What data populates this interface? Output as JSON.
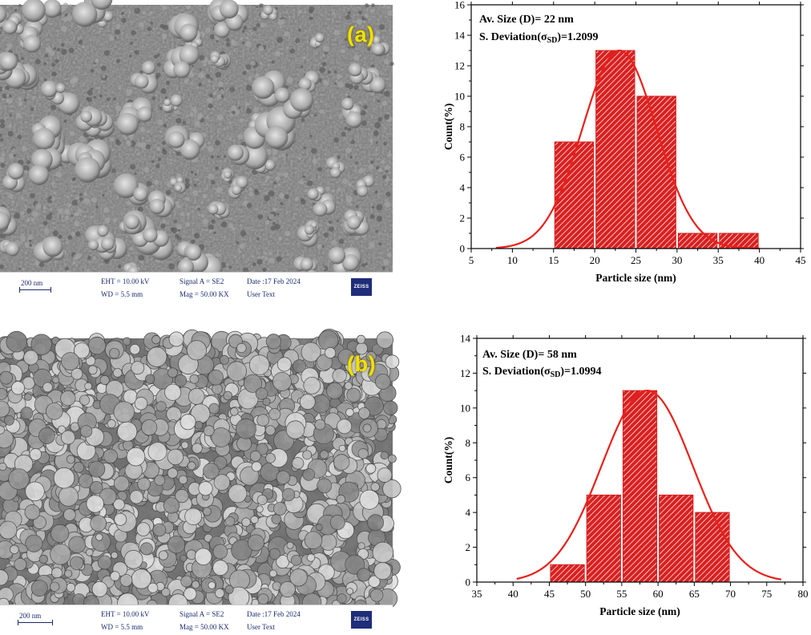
{
  "panels": [
    {
      "label": "(a)",
      "sem_info": {
        "scale_label": "200 nm",
        "eht": "EHT = 10.00 kV",
        "wd": "WD = 5.5 mm",
        "signal": "Signal A = SE2",
        "mag": "Mag = 50.00 KX",
        "date": "Date :17 Feb 2024",
        "user": "User Text",
        "logo": "ZEISS"
      },
      "stats": {
        "size_text": "Av. Size (D)= 22 nm",
        "dev_prefix": "S. Deviation(",
        "sigma": "σ",
        "sigma_sub": "SD",
        "dev_value": ")=1.2099"
      }
    },
    {
      "label": "(b)",
      "sem_info": {
        "scale_label": "200 nm",
        "eht": "EHT = 10.00 kV",
        "wd": "WD = 5.5 mm",
        "signal": "Signal A = SE2",
        "mag": "Mag = 50.00 KX",
        "date": "Date :17 Feb 2024",
        "user": "User Text",
        "logo": "ZEISS"
      },
      "stats": {
        "size_text": "Av. Size (D)= 58 nm",
        "dev_prefix": "S. Deviation(",
        "sigma": "σ",
        "sigma_sub": "SD",
        "dev_value": ")=1.0994"
      }
    }
  ],
  "colors": {
    "bar": "#d92020",
    "curve": "#e8201a",
    "label_yellow": "#f2e000"
  },
  "chart_data": [
    {
      "type": "bar",
      "bin_edges": [
        15,
        20,
        25,
        30,
        35,
        40
      ],
      "values": [
        7,
        13,
        10,
        1,
        1
      ],
      "fit_curve": {
        "mean": 23,
        "sd": 4.5,
        "peak": 13,
        "x_start": 8,
        "x_end": 40
      },
      "xlabel": "Particle size (nm)",
      "ylabel": "Count(%)",
      "xlim": [
        5,
        45
      ],
      "ylim": [
        0,
        16
      ],
      "xticks": [
        5,
        10,
        15,
        20,
        25,
        30,
        35,
        40,
        45
      ],
      "yticks": [
        0,
        2,
        4,
        6,
        8,
        10,
        12,
        14,
        16
      ],
      "grid": false
    },
    {
      "type": "bar",
      "bin_edges": [
        45,
        50,
        55,
        60,
        65,
        70
      ],
      "values": [
        1,
        5,
        11,
        5,
        4
      ],
      "fit_curve": {
        "mean": 58.5,
        "sd": 6.3,
        "peak": 11,
        "x_start": 40.5,
        "x_end": 77
      },
      "xlabel": "Particle size (nm)",
      "ylabel": "Count(%)",
      "xlim": [
        35,
        80
      ],
      "ylim": [
        0,
        14
      ],
      "xticks": [
        35,
        40,
        45,
        50,
        55,
        60,
        65,
        70,
        75,
        80
      ],
      "yticks": [
        0,
        2,
        4,
        6,
        8,
        10,
        12,
        14
      ],
      "grid": false
    }
  ]
}
